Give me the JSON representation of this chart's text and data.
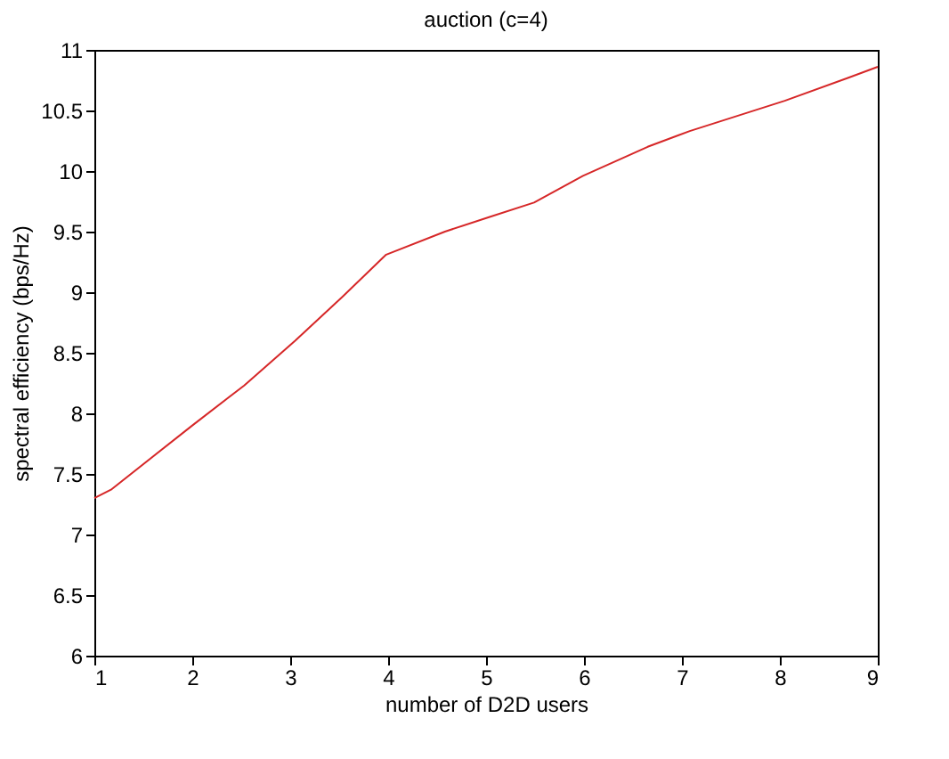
{
  "chart_data": {
    "type": "line",
    "title": "auction (c=4)",
    "xlabel": "number of D2D users",
    "ylabel": "spectral efficiency (bps/Hz)",
    "x": [
      1,
      1.17,
      2,
      2.53,
      3.05,
      3.53,
      3.98,
      4.58,
      5.03,
      5.49,
      5.99,
      6.65,
      7.08,
      8.05,
      8.7,
      9
    ],
    "series": [
      {
        "color": "#d62728",
        "values": [
          7.3,
          7.37,
          7.9,
          8.23,
          8.6,
          8.96,
          9.31,
          9.5,
          9.62,
          9.74,
          9.96,
          10.2,
          10.33,
          10.58,
          10.77,
          10.86
        ]
      }
    ],
    "xlim": [
      1,
      9
    ],
    "xticks": [
      1,
      2,
      3,
      4,
      5,
      6,
      7,
      8,
      9
    ],
    "ylim": [
      6,
      11
    ],
    "yticks": [
      6,
      6.5,
      7,
      7.5,
      8,
      8.5,
      9,
      9.5,
      10,
      10.5,
      11
    ],
    "grid": false,
    "legend": false,
    "marker": "none",
    "line_style": "solid"
  }
}
